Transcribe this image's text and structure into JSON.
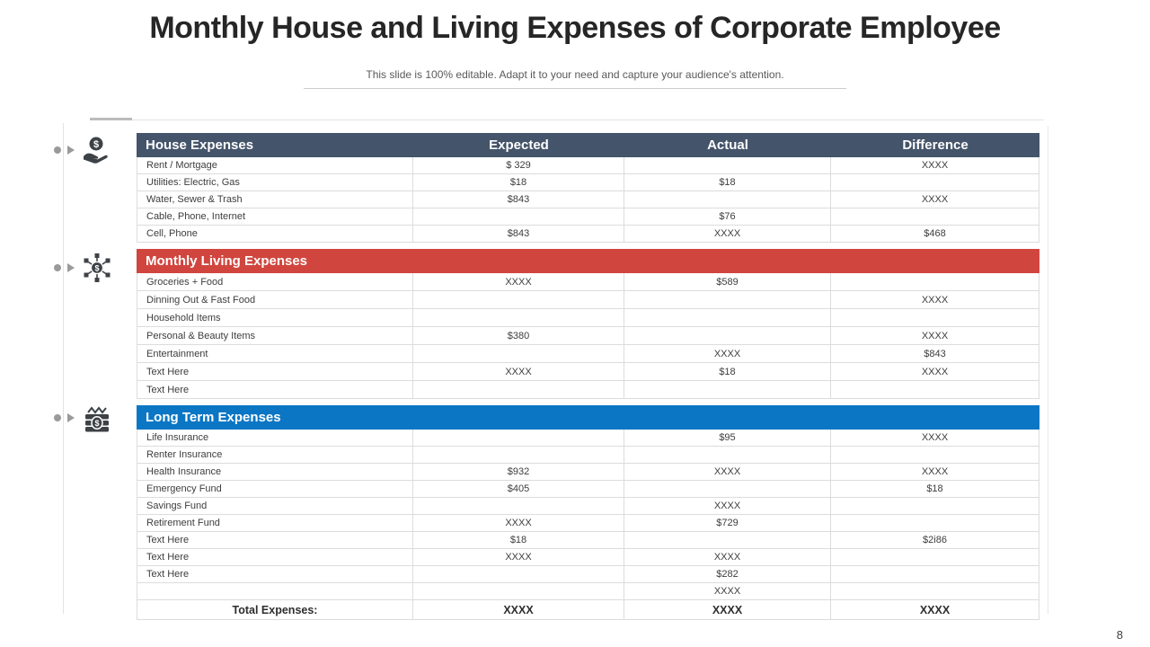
{
  "slide": {
    "title": "Monthly House and Living Expenses of Corporate Employee",
    "subtitle": "This slide is 100% editable. Adapt it to your need and capture your audience's attention.",
    "page_number": "8"
  },
  "colors": {
    "house_header": "#44546A",
    "living_band": "#D0463E",
    "longterm_band": "#0B76C4",
    "icon": "#3d4247"
  },
  "icons": [
    {
      "name": "dollar-hand-icon",
      "section": "House Expenses"
    },
    {
      "name": "dollar-network-icon",
      "section": "Monthly Living Expenses"
    },
    {
      "name": "money-stack-icon",
      "section": "Long Term Expenses"
    }
  ],
  "table": {
    "header": {
      "label": "House Expenses",
      "columns": [
        "Expected",
        "Actual",
        "Difference"
      ],
      "color": "#44546A"
    },
    "sections": [
      {
        "rows": [
          [
            "Rent / Mortgage",
            "$ 329",
            "",
            "XXXX"
          ],
          [
            "Utilities: Electric, Gas",
            "$18",
            "$18",
            ""
          ],
          [
            "Water, Sewer & Trash",
            "$843",
            "",
            "XXXX"
          ],
          [
            "Cable, Phone, Internet",
            "",
            "$76",
            ""
          ],
          [
            "Cell, Phone",
            "$843",
            "XXXX",
            "$468"
          ]
        ]
      },
      {
        "band": "Monthly Living Expenses",
        "color": "#D0463E",
        "rows": [
          [
            "Groceries + Food",
            "XXXX",
            "$589",
            ""
          ],
          [
            "Dinning Out & Fast Food",
            "",
            "",
            "XXXX"
          ],
          [
            "Household Items",
            "",
            "",
            ""
          ],
          [
            "Personal & Beauty Items",
            "$380",
            "",
            "XXXX"
          ],
          [
            "Entertainment",
            "",
            "XXXX",
            "$843"
          ],
          [
            "Text Here",
            "XXXX",
            "$18",
            "XXXX"
          ],
          [
            "Text Here",
            "",
            "",
            ""
          ]
        ]
      },
      {
        "band": "Long Term Expenses",
        "color": "#0B76C4",
        "rows": [
          [
            "Life Insurance",
            "",
            "$95",
            "XXXX"
          ],
          [
            "Renter Insurance",
            "",
            "",
            ""
          ],
          [
            "Health Insurance",
            "$932",
            "XXXX",
            "XXXX"
          ],
          [
            "Emergency Fund",
            "$405",
            "",
            "$18"
          ],
          [
            "Savings Fund",
            "",
            "XXXX",
            ""
          ],
          [
            "Retirement Fund",
            "XXXX",
            "$729",
            ""
          ],
          [
            "Text Here",
            "$18",
            "",
            "$2i86"
          ],
          [
            "Text Here",
            "XXXX",
            "XXXX",
            ""
          ],
          [
            "Text Here",
            "",
            "$282",
            ""
          ],
          [
            "",
            "",
            "XXXX",
            ""
          ]
        ]
      }
    ],
    "total": [
      "Total Expenses:",
      "XXXX",
      "XXXX",
      "XXXX"
    ]
  }
}
